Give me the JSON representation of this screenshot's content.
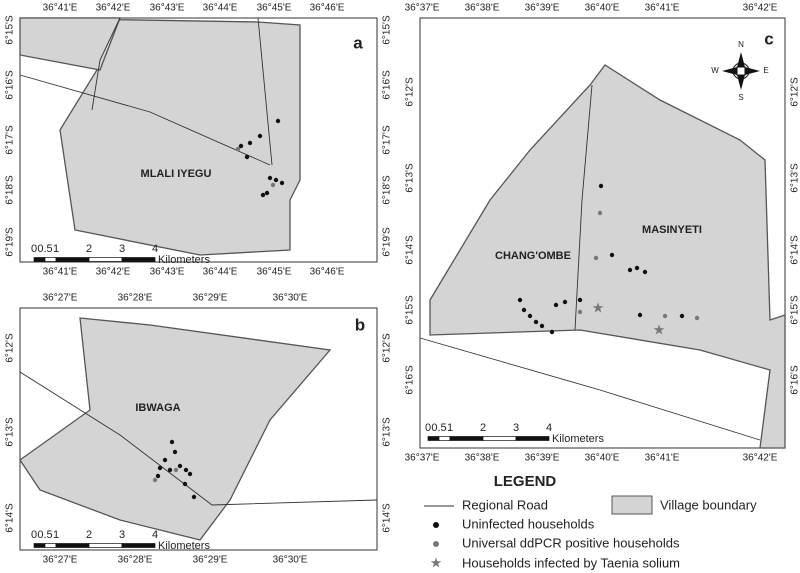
{
  "panels": [
    {
      "label": "a",
      "village": "MLALI IYEGU",
      "x_labels": [
        "36°41'E",
        "36°42'E",
        "36°43'E",
        "36°44'E",
        "36°45'E",
        "36°46'E"
      ],
      "y_labels": [
        "6°15'S",
        "6°16'S",
        "6°17'S",
        "6°18'S",
        "6°19'S"
      ],
      "scale": {
        "ticks": [
          "0",
          "0.5",
          "1",
          "2",
          "3",
          "4"
        ],
        "unit": "Kilometers"
      }
    },
    {
      "label": "b",
      "village": "IBWAGA",
      "x_labels": [
        "36°27'E",
        "36°28'E",
        "36°29'E",
        "36°30'E"
      ],
      "y_labels": [
        "6°12'S",
        "6°13'S",
        "6°14'S"
      ],
      "scale": {
        "ticks": [
          "0",
          "0.5",
          "1",
          "2",
          "3",
          "4"
        ],
        "unit": "Kilometers"
      }
    },
    {
      "label": "c",
      "villages": [
        "CHANG'OMBE",
        "MASINYETI"
      ],
      "x_labels": [
        "36°37'E",
        "36°38'E",
        "36°39'E",
        "36°40'E",
        "36°41'E",
        "36°42'E"
      ],
      "y_labels": [
        "6°12'S",
        "6°13'S",
        "6°14'S",
        "6°15'S",
        "6°16'S"
      ],
      "scale": {
        "ticks": [
          "0",
          "0.5",
          "1",
          "2",
          "3",
          "4"
        ],
        "unit": "Kilometers"
      }
    }
  ],
  "compass": {
    "n": "N",
    "s": "S",
    "e": "E",
    "w": "W"
  },
  "legend": {
    "title": "LEGEND",
    "items": [
      "Regional Road",
      "Village boundary",
      "Uninfected households",
      "Universal ddPCR positive households",
      "Households infected by Taenia solium"
    ]
  }
}
